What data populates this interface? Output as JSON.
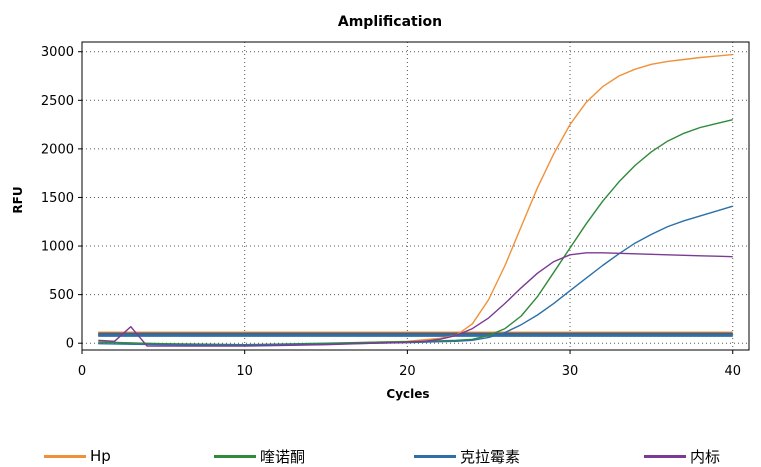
{
  "chart_data": {
    "type": "line",
    "title": "Amplification",
    "xlabel": "Cycles",
    "ylabel": "RFU",
    "xlim": [
      0,
      41
    ],
    "ylim": [
      -70,
      3100
    ],
    "xticks": [
      0,
      10,
      20,
      30,
      40
    ],
    "yticks": [
      0,
      500,
      1000,
      1500,
      2000,
      2500,
      3000
    ],
    "grid": true,
    "legend_position": "bottom",
    "series": [
      {
        "name": "Hp",
        "color": "#f0913a",
        "x": [
          1,
          5,
          10,
          15,
          18,
          20,
          21,
          22,
          23,
          24,
          25,
          26,
          27,
          28,
          29,
          30,
          31,
          32,
          33,
          34,
          35,
          36,
          37,
          38,
          39,
          40
        ],
        "y": [
          15,
          -10,
          -20,
          -5,
          10,
          20,
          35,
          50,
          80,
          200,
          450,
          800,
          1200,
          1600,
          1950,
          2250,
          2480,
          2640,
          2750,
          2820,
          2870,
          2900,
          2920,
          2940,
          2955,
          2970
        ]
      },
      {
        "name": "喹诺酮",
        "color": "#2f8a3a",
        "x": [
          1,
          5,
          10,
          15,
          18,
          20,
          21,
          22,
          23,
          24,
          25,
          26,
          27,
          28,
          29,
          30,
          31,
          32,
          33,
          34,
          35,
          36,
          37,
          38,
          39,
          40
        ],
        "y": [
          10,
          -5,
          -15,
          0,
          10,
          15,
          20,
          25,
          30,
          40,
          80,
          150,
          280,
          480,
          730,
          980,
          1230,
          1460,
          1660,
          1830,
          1970,
          2080,
          2160,
          2220,
          2260,
          2300
        ]
      },
      {
        "name": "克拉霉素",
        "color": "#2e6fa8",
        "x": [
          1,
          5,
          10,
          15,
          18,
          20,
          21,
          22,
          23,
          24,
          25,
          26,
          27,
          28,
          29,
          30,
          31,
          32,
          33,
          34,
          35,
          36,
          37,
          38,
          39,
          40
        ],
        "y": [
          -5,
          -15,
          -20,
          -10,
          0,
          5,
          10,
          15,
          20,
          30,
          60,
          110,
          190,
          290,
          410,
          540,
          670,
          800,
          920,
          1030,
          1120,
          1200,
          1260,
          1310,
          1360,
          1410
        ]
      },
      {
        "name": "内标",
        "color": "#7b3a93",
        "x": [
          1,
          2,
          3,
          4,
          5,
          10,
          15,
          18,
          20,
          21,
          22,
          23,
          24,
          25,
          26,
          27,
          28,
          29,
          30,
          31,
          32,
          33,
          34,
          35,
          36,
          37,
          38,
          39,
          40
        ],
        "y": [
          30,
          20,
          170,
          -30,
          -30,
          -30,
          -15,
          0,
          10,
          20,
          40,
          80,
          150,
          260,
          410,
          570,
          720,
          840,
          910,
          930,
          930,
          925,
          920,
          915,
          910,
          905,
          900,
          895,
          890
        ]
      }
    ],
    "threshold_lines": [
      {
        "color": "#f0913a",
        "y": 105
      },
      {
        "color": "#2f8a3a",
        "y": 95
      },
      {
        "color": "#7b3a93",
        "y": 88
      },
      {
        "color": "#2e6fa8",
        "y": 80
      }
    ]
  },
  "legend": [
    {
      "label": "Hp",
      "color": "#f0913a"
    },
    {
      "label": "喹诺酮",
      "color": "#2f8a3a"
    },
    {
      "label": "克拉霉素",
      "color": "#2e6fa8"
    },
    {
      "label": "内标",
      "color": "#7b3a93"
    }
  ]
}
